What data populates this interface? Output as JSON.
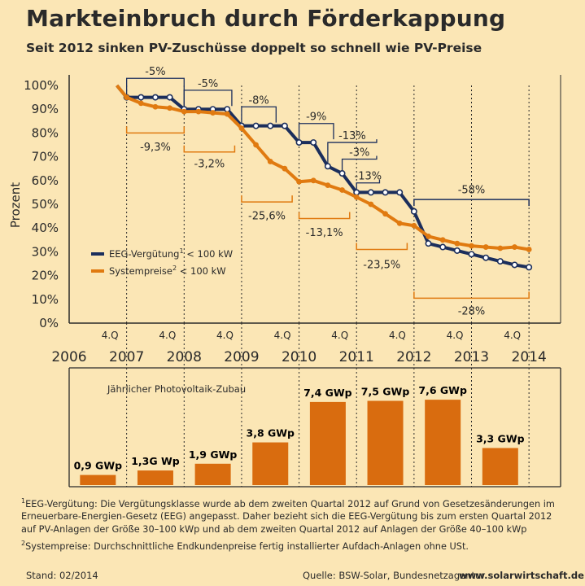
{
  "title": "Markteinbruch durch Förderkappung",
  "subtitle": "Seit 2012 sinken PV-Zuschüsse doppelt so schnell wie PV-Preise",
  "colors": {
    "navy": "#1b2e5c",
    "orange": "#e07a10",
    "bg": "#fbe6b5",
    "bar": "#d96c0f"
  },
  "chart_data": [
    {
      "type": "line",
      "ylabel": "Prozent",
      "ylim": [
        0,
        100
      ],
      "yticks": [
        "0%",
        "10%",
        "20%",
        "30%",
        "40%",
        "50%",
        "60%",
        "70%",
        "80%",
        "90%",
        "100%"
      ],
      "quarter_label": "4.Q",
      "years": [
        "2006",
        "2007",
        "2008",
        "2009",
        "2010",
        "2011",
        "2012",
        "2013",
        "2014"
      ],
      "legend": [
        {
          "name": "EEG-Vergütung",
          "sup": "1",
          "suffix": " < 100 kW"
        },
        {
          "name": "Systempreise",
          "sup": "2",
          "suffix": " < 100 kW"
        }
      ],
      "series": [
        {
          "name": "EEG-Vergütung",
          "color": "navy",
          "start": [
            2006.83,
            100
          ],
          "x": [
            2007.0,
            2007.25,
            2007.5,
            2007.75,
            2008.0,
            2008.25,
            2008.5,
            2008.75,
            2009.0,
            2009.25,
            2009.5,
            2009.75,
            2010.0,
            2010.25,
            2010.5,
            2010.75,
            2011.0,
            2011.25,
            2011.5,
            2011.75,
            2012.0,
            2012.25,
            2012.5,
            2012.75,
            2013.0,
            2013.25,
            2013.5,
            2013.75,
            2014.0
          ],
          "values": [
            95,
            95,
            95,
            95,
            90,
            90,
            90,
            90,
            83,
            83,
            83,
            83,
            76,
            76,
            66,
            63,
            55,
            55,
            55,
            55,
            47,
            33.5,
            32,
            30.5,
            29,
            27.5,
            26,
            24.5,
            23.5
          ]
        },
        {
          "name": "Systempreise",
          "color": "orange",
          "start": [
            2006.83,
            100
          ],
          "x": [
            2007.0,
            2007.25,
            2007.5,
            2007.75,
            2008.0,
            2008.25,
            2008.5,
            2008.75,
            2009.0,
            2009.25,
            2009.5,
            2009.75,
            2010.0,
            2010.25,
            2010.5,
            2010.75,
            2011.0,
            2011.25,
            2011.5,
            2011.75,
            2012.0,
            2012.25,
            2012.5,
            2012.75,
            2013.0,
            2013.25,
            2013.5,
            2013.75,
            2014.0
          ],
          "values": [
            95,
            92.5,
            91,
            90.5,
            89,
            89,
            88.5,
            88,
            82,
            75,
            68,
            65,
            59.5,
            60,
            58,
            56,
            53,
            50,
            46,
            42,
            41,
            36.5,
            35,
            33.5,
            32.5,
            32,
            31.5,
            32,
            31
          ]
        }
      ],
      "annotations_top": [
        {
          "label": "-5%",
          "x1": 2007.0,
          "x2": 2008.0,
          "y1": 95,
          "y2": 90,
          "ty": 103
        },
        {
          "label": "-5%",
          "x1": 2008.0,
          "x2": 2008.83,
          "y1": 90,
          "y2": 90,
          "ty": 98
        },
        {
          "label": "-8%",
          "x1": 2009.0,
          "x2": 2009.6,
          "y1": 83,
          "y2": 83,
          "ty": 91
        },
        {
          "label": "-9%",
          "x1": 2010.0,
          "x2": 2010.6,
          "y1": 76,
          "y2": 76,
          "ty": 84
        },
        {
          "label": "-13%",
          "x1": 2010.5,
          "x2": 2011.35,
          "y1": 66,
          "y2": 76,
          "ty": 76
        },
        {
          "label": "-3%",
          "x1": 2010.75,
          "x2": 2011.35,
          "y1": 63,
          "y2": 69,
          "ty": 69
        },
        {
          "label": "-13%",
          "x1": 2011.0,
          "x2": 2011.4,
          "y1": 55,
          "y2": 59,
          "ty": 59
        }
      ],
      "brackets_top": [
        {
          "label": "-58%",
          "x1": 2012.0,
          "x2": 2014.0,
          "y": 52,
          "ty": 54
        }
      ],
      "brackets_bottom": [
        {
          "label": "-9,3%",
          "x1": 2007.0,
          "x2": 2008.0,
          "y": 80,
          "ty": 74
        },
        {
          "label": "-3,2%",
          "x1": 2008.0,
          "x2": 2008.88,
          "y": 72,
          "ty": 67
        },
        {
          "label": "-25,6%",
          "x1": 2009.0,
          "x2": 2009.88,
          "y": 51,
          "ty": 45
        },
        {
          "label": "-13,1%",
          "x1": 2010.0,
          "x2": 2010.88,
          "y": 44,
          "ty": 38
        },
        {
          "label": "-23,5%",
          "x1": 2011.0,
          "x2": 2011.88,
          "y": 31,
          "ty": 24.5
        },
        {
          "label": "-28%",
          "x1": 2012.0,
          "x2": 2014.0,
          "y": 10.5,
          "ty": 5
        }
      ]
    },
    {
      "type": "bar",
      "title": "Jährlicher Photovoltaik-Zubau",
      "unit": "GWp",
      "categories": [
        "2006",
        "2007",
        "2008",
        "2009",
        "2010",
        "2011",
        "2012",
        "2013"
      ],
      "values": [
        0.9,
        1.3,
        1.9,
        3.8,
        7.4,
        7.5,
        7.6,
        3.3
      ],
      "labels": [
        "0,9 GWp",
        "1,3G Wp",
        "1,9 GWp",
        "3,8 GWp",
        "7,4 GWp",
        "7,5 GWp",
        "7,6 GWp",
        "3,3 GWp"
      ],
      "ylim": [
        0,
        10
      ]
    }
  ],
  "footnotes": [
    {
      "sup": "1",
      "lines": [
        "EEG-Vergütung: Die Vergütungsklasse wurde ab dem zweiten Quartal 2012 auf Grund von Gesetzesänderungen im",
        "Erneuerbare-Energien-Gesetz (EEG) angepasst. Daher bezieht sich die EEG-Vergütung bis zum ersten Quartal 2012",
        "auf PV-Anlagen der Größe 30–100 kWp und ab dem zweiten Quartal 2012 auf Anlagen der Größe 40–100 kWp"
      ]
    },
    {
      "sup": "2",
      "lines": [
        "Systempreise: Durchschnittliche Endkundenpreise fertig installierter Aufdach-Anlagen ohne USt."
      ]
    }
  ],
  "footer": {
    "stand": "Stand: 02/2014",
    "source": "Quelle: BSW-Solar, Bundesnetzagentur",
    "url": "www.solarwirtschaft.de"
  }
}
